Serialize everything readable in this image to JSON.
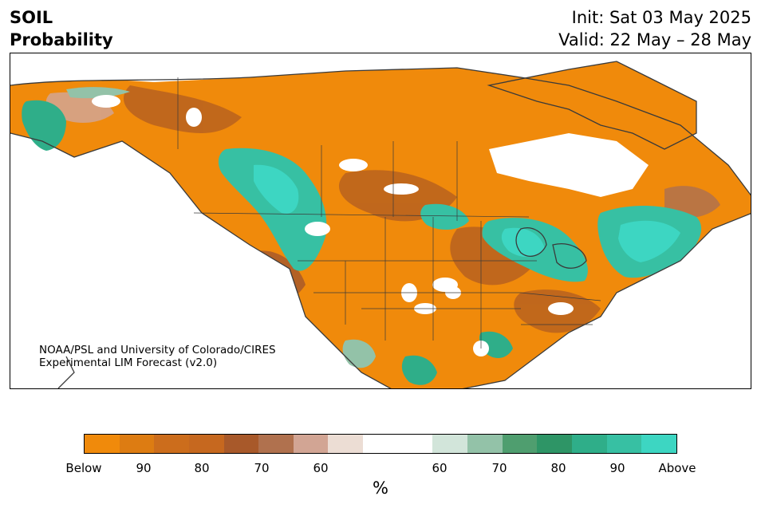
{
  "header": {
    "title_line1": "SOIL",
    "title_line2": "Probability",
    "init_text": "Init: Sat 03 May 2025",
    "valid_text": "Valid: 22 May – 28 May"
  },
  "credit": {
    "line1": "NOAA/PSL and University of Colorado/CIRES",
    "line2": "Experimental LIM Forecast (v2.0)"
  },
  "map": {
    "region": "North America",
    "variable": "Soil moisture probability",
    "colors": {
      "land_outline": "#3a3a3a",
      "below_strong": "#f08a0b",
      "below_mid": "#b8621f",
      "above_mid": "#3aa07a",
      "above_strong": "#3dd6c2"
    }
  },
  "colorbar": {
    "colors": [
      "#f08a0b",
      "#dd7c12",
      "#cc6d1c",
      "#c6681f",
      "#a8592a",
      "#b0714e",
      "#d2a594",
      "#ecddd4",
      "#ffffff",
      "#ffffff",
      "#d2e5da",
      "#93c2a8",
      "#4f9e6f",
      "#2e9566",
      "#2fae89",
      "#37c0a3",
      "#3dd6c2"
    ],
    "tick_labels": [
      "Below",
      "90",
      "80",
      "70",
      "60",
      "60",
      "70",
      "80",
      "90",
      "Above"
    ],
    "unit_label": "%"
  }
}
